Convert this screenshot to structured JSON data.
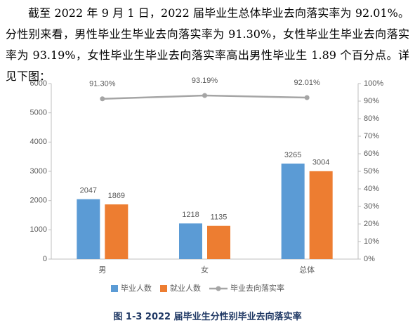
{
  "paragraph": "截至 2022 年 9 月 1 日，2022 届毕业生总体毕业去向落实率为 92.01%。分性别来看，男性毕业生毕业去向落实率为 91.30%，女性毕业生毕业去向落实率为 93.19%，女性毕业生毕业去向落实率高出男性毕业生 1.89 个百分点。详见下图：",
  "chart_data": {
    "type": "bar",
    "categories": [
      "男",
      "女",
      "总体"
    ],
    "series": [
      {
        "name": "毕业人数",
        "color": "#5b9bd5",
        "values": [
          2047,
          1218,
          3265
        ]
      },
      {
        "name": "就业人数",
        "color": "#ed7d31",
        "values": [
          1869,
          1135,
          3004
        ]
      },
      {
        "name": "毕业去向落实率",
        "color": "#a5a5a5",
        "type": "line",
        "axis": "y2",
        "values": [
          91.3,
          93.19,
          92.01
        ],
        "value_labels": [
          "91.30%",
          "93.19%",
          "92.01%"
        ]
      }
    ],
    "ylim": [
      0,
      6000
    ],
    "yticks": [
      0,
      1000,
      2000,
      3000,
      4000,
      5000,
      6000
    ],
    "y2lim": [
      0,
      100
    ],
    "y2ticks": [
      {
        "value": 0,
        "label": "0%"
      },
      {
        "value": 10,
        "label": "10%"
      },
      {
        "value": 20,
        "label": "20%"
      },
      {
        "value": 30,
        "label": "30%"
      },
      {
        "value": 40,
        "label": "40%"
      },
      {
        "value": 50,
        "label": "50%"
      },
      {
        "value": 60,
        "label": "60%"
      },
      {
        "value": 70,
        "label": "70%"
      },
      {
        "value": 80,
        "label": "80%"
      },
      {
        "value": 90,
        "label": "90%"
      },
      {
        "value": 100,
        "label": "100%"
      }
    ],
    "grid": false
  },
  "caption": "图 1-3 2022 届毕业生分性别毕业去向落实率"
}
